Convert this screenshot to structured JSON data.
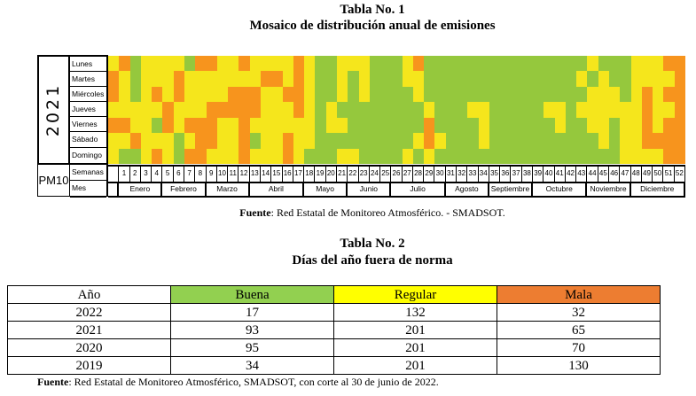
{
  "table1": {
    "title": "Tabla No. 1",
    "subtitle": "Mosaico de distribución anual de emisiones",
    "year": "2021",
    "pollutant": "PM10",
    "weeks_label": "Semanas",
    "month_label": "Mes",
    "colors": {
      "G": "#95c83d",
      "Y": "#f5e61c",
      "O": "#f7941d"
    },
    "legend_meaning": {
      "G": "Buena",
      "Y": "Regular",
      "O": "Mala"
    },
    "days": [
      {
        "label": "Lunes",
        "values": "YOGYYYYGOOYYOYYYYOYGGYYYGGGYOGGGGGGGGGGGGGGGYGGGYYYOO"
      },
      {
        "label": "Martes",
        "values": "OYGYYYOYYYYYYYOOYOYGGYGYGGGYYGGGGGGGGGGGGGGYGYGGYYYYO"
      },
      {
        "label": "Miércoles",
        "values": "OYGYOYOYYYYOOOYYOOYGGYGYGGGGYGGGGGGGGGGGGGGGYYYGYOYOO"
      },
      {
        "label": "Jueves",
        "values": "YYYYYOYYYOOOOOYYYOYGYGGGGGGGGYGGGYYGGGGGYYGYYYYYYOYYO"
      },
      {
        "label": "Viernes",
        "values": "OOYYGOYOOOYYOYYYYYYGYYGGGGGGGOGGGGYGGGGGGYGGYYGYYOYOO"
      },
      {
        "label": "Sábado",
        "values": "YYOYYYGYOOYYOGYYOYYGGGGGGGGGYOYGGGYGGGGGGGGGGYGYYOOOO"
      },
      {
        "label": "Domingo",
        "values": "YGGYOYGOOYYYOYYYOYGGGYYGGGGYGYGGGGGGGGGGGGGGGGGYYYYOO"
      }
    ],
    "weeks": [
      "",
      "1",
      "2",
      "3",
      "4",
      "5",
      "6",
      "7",
      "8",
      "9",
      "10",
      "11",
      "12",
      "13",
      "14",
      "15",
      "16",
      "17",
      "18",
      "19",
      "20",
      "21",
      "22",
      "23",
      "24",
      "25",
      "26",
      "27",
      "28",
      "29",
      "30",
      "31",
      "32",
      "33",
      "34",
      "35",
      "36",
      "37",
      "38",
      "39",
      "40",
      "41",
      "42",
      "43",
      "44",
      "45",
      "46",
      "47",
      "48",
      "49",
      "50",
      "51",
      "52"
    ],
    "months": [
      {
        "label": "",
        "weeks": 1
      },
      {
        "label": "Enero",
        "weeks": 4
      },
      {
        "label": "Febrero",
        "weeks": 4
      },
      {
        "label": "Marzo",
        "weeks": 4
      },
      {
        "label": "Abril",
        "weeks": 5
      },
      {
        "label": "Mayo",
        "weeks": 4
      },
      {
        "label": "Junio",
        "weeks": 4
      },
      {
        "label": "Julio",
        "weeks": 5
      },
      {
        "label": "Agosto",
        "weeks": 4
      },
      {
        "label": "Septiembre",
        "weeks": 4
      },
      {
        "label": "Octubre",
        "weeks": 5
      },
      {
        "label": "Noviembre",
        "weeks": 4
      },
      {
        "label": "Diciembre",
        "weeks": 5
      }
    ],
    "source_bold": "Fuente",
    "source_text": ": Red Estatal de Monitoreo Atmosférico. - SMADSOT."
  },
  "table2": {
    "title": "Tabla No. 2",
    "subtitle": "Días del año fuera de norma",
    "headers": [
      "Año",
      "Buena",
      "Regular",
      "Mala"
    ],
    "header_colors": [
      "#ffffff",
      "#92d050",
      "#ffff00",
      "#ed7d31"
    ],
    "rows": [
      [
        "2022",
        "17",
        "132",
        "32"
      ],
      [
        "2021",
        "93",
        "201",
        "65"
      ],
      [
        "2020",
        "95",
        "201",
        "70"
      ],
      [
        "2019",
        "34",
        "201",
        "130"
      ]
    ],
    "source_bold": "Fuente",
    "source_text": ": Red Estatal de Monitoreo Atmosférico, SMADSOT, con corte al 30 de junio de 2022."
  }
}
